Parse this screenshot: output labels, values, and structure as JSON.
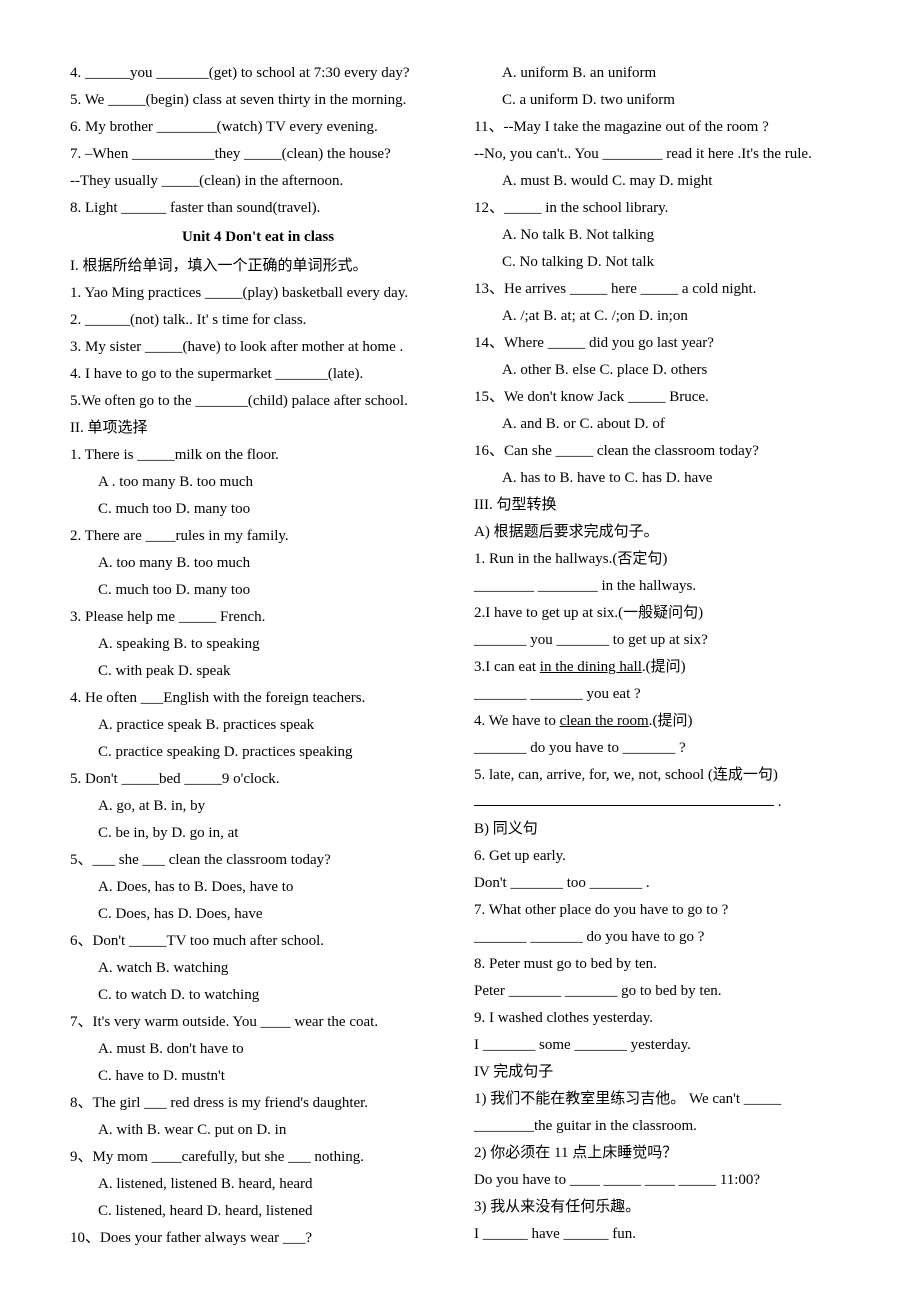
{
  "left": {
    "top": [
      "4. ______you _______(get) to school at 7:30 every day?",
      "5. We _____(begin) class at seven thirty in the morning.",
      "6. My brother ________(watch) TV every evening.",
      "7. –When ___________they _____(clean) the house?",
      "--They usually _____(clean) in the afternoon.",
      "8. Light ______ faster than sound(travel)."
    ],
    "unit_title": "Unit 4   Don't eat in class",
    "sectionI_title": "I. 根据所给单词，填入一个正确的单词形式。",
    "sectionI": [
      "1. Yao Ming practices _____(play) basketball every day.",
      "2. ______(not) talk.. It' s time for class.",
      "3. My sister _____(have) to look after   mother at home .",
      "4. I have to go to the supermarket _______(late).",
      "5.We often go to the _______(child) palace after school."
    ],
    "sectionII_title": "II. 单项选择",
    "q1": {
      "stem": "1. There is _____milk on the floor.",
      "opts1": "A . too many   B. too much",
      "opts2": "C. much too    D. many too"
    },
    "q2": {
      "stem": "2. There are ____rules in my family.",
      "opts1": "A. too many    B. too much",
      "opts2": "C. much too    D. many too"
    },
    "q3": {
      "stem": "3. Please help me _____ French.",
      "opts1": "A. speaking    B. to speaking",
      "opts2": "C. with peak   D. speak"
    },
    "q4": {
      "stem": "4. He often ___English with the foreign teachers.",
      "opts1": "A. practice speak        B. practices speak",
      "opts2": "C. practice speaking    D. practices speaking"
    },
    "q5": {
      "stem": "5. Don't _____bed _____9 o'clock.",
      "opts1": "A. go, at         B. in, by",
      "opts2": "C. be in, by     D. go in, at"
    },
    "q5b": {
      "stem": "5、___ she ___ clean the classroom today?",
      "opts1": "A. Does, has to    B. Does,   have to",
      "opts2": "C. Does, has        D. Does, have"
    },
    "q6": {
      "stem": "6、Don't _____TV too much after school.",
      "opts1": "A. watch       B. watching",
      "opts2": "C. to watch    D. to watching"
    },
    "q7": {
      "stem": "7、It's very warm outside. You ____ wear the coat.",
      "opts1": "A. must      B. don't have to",
      "opts2": "C. have to   D. mustn't"
    },
    "q8": {
      "stem": "8、The girl ___ red dress is my friend's daughter.",
      "opts1": "A. with    B. wear    C. put on    D. in"
    },
    "q9": {
      "stem": "9、My mom ____carefully, but she ___ nothing.",
      "opts1": "A. listened, listened     B. heard, heard",
      "opts2": "C. listened, heard         D. heard, listened"
    },
    "q10": {
      "stem": "10、Does your father always wear ___?"
    }
  },
  "right": {
    "q10opts": {
      "opts1": "A. uniform        B. an uniform",
      "opts2": "C. a uniform     D. two uniform"
    },
    "q11": {
      "stem": "11、--May I take the magazine out of the room ?",
      "stem2": "--No, you can't.. You ________ read it here .It's the rule.",
      "opts": "A. must      B. would      C. may         D. might"
    },
    "q12": {
      "stem": "12、_____ in the school library.",
      "opts1": "A. No talk        B. Not talking",
      "opts2": "C. No talking    D. Not talk"
    },
    "q13": {
      "stem": "13、He arrives _____ here _____ a cold night.",
      "opts": "A.  /;at      B. at; at      C. /;on     D. in;on"
    },
    "q14": {
      "stem": "14、Where _____ did you go last year?",
      "opts": "A. other      B. else    C. place    D. others"
    },
    "q15": {
      "stem": "15、We don't know Jack _____ Bruce.",
      "opts": "A. and        B. or       C. about     D. of"
    },
    "q16": {
      "stem": "16、Can she _____ clean the classroom today?",
      "opts": "A. has to      B. have to    C. has     D. have"
    },
    "sectionIII_title": "III. 句型转换",
    "A_title": "A) 根据题后要求完成句子。",
    "A": [
      "1. Run in the hallways.(否定句)",
      "________ ________  in the hallways.",
      "2.I have to get up at six.(一般疑问句)",
      "_______  you _______  to get up at six?",
      "3.I can eat <u>in the dining hall</u>.(提问)",
      "_______  _______  you eat ?",
      "4. We have to <u>clean the room</u>.(提问)",
      "_______  do you have to _______  ?",
      "5. late, can, arrive, for, we, not, school (连成一句)",
      "<xl>  ."
    ],
    "B_title": "B) 同义句",
    "B": [
      "6. Get up early.",
      "Don't _______  too _______  .",
      "7. What other place do you have to go to ?",
      "_______  _______  do you have to go ?",
      "8. Peter must go to bed by ten.",
      "Peter _______  _______  go to bed by ten.",
      "9. I washed clothes yesterday.",
      "I _______  some _______  yesterday."
    ],
    "sectionIV_title": "IV 完成句子",
    "IV": [
      "1) 我们不能在教室里练习吉他。  We can't _____",
      "________the guitar in the classroom.",
      "2) 你必须在 11 点上床睡觉吗？",
      "  Do you have to ____   _____    ____   _____ 11:00?",
      "3) 我从来没有任何乐趣。",
      "    I ______ have ______ fun."
    ]
  }
}
